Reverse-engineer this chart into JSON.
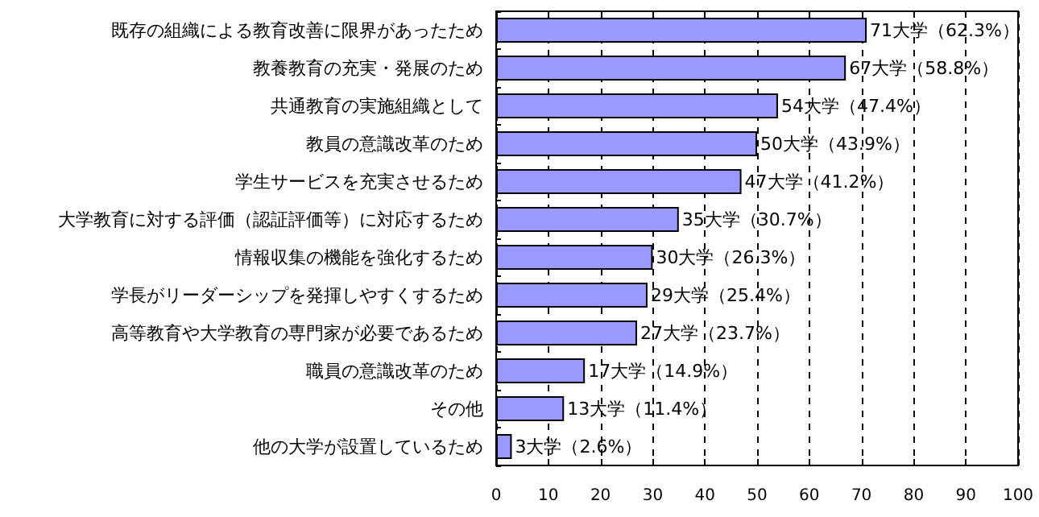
{
  "chart_data": {
    "type": "bar",
    "orientation": "horizontal",
    "categories": [
      "既存の組織による教育改善に限界があったため",
      "教養教育の充実・発展のため",
      "共通教育の実施組織として",
      "教員の意識改革のため",
      "学生サービスを充実させるため",
      "大学教育に対する評価（認証評価等）に対応するため",
      "情報収集の機能を強化するため",
      "学長がリーダーシップを発揮しやすくするため",
      "高等教育や大学教育の専門家が必要であるため",
      "職員の意識改革のため",
      "その他",
      "他の大学が設置しているため"
    ],
    "values": [
      71,
      67,
      54,
      50,
      47,
      35,
      30,
      29,
      27,
      17,
      13,
      3
    ],
    "value_labels": [
      "71大学（62.3%）",
      "67大学（58.8%）",
      "54大学（47.4%）",
      "50大学（43.9%）",
      "47大学（41.2%）",
      "35大学（30.7%）",
      "30大学（26.3%）",
      "29大学（25.4%）",
      "27大学（23.7%）",
      "17大学（14.9%）",
      "13大学（11.4%）",
      "3大学（2.6%）"
    ],
    "color": "#9999ff",
    "xlim": [
      0,
      100
    ],
    "xticks": [
      0,
      10,
      20,
      30,
      40,
      50,
      60,
      70,
      80,
      90,
      100
    ],
    "grid": "x"
  }
}
